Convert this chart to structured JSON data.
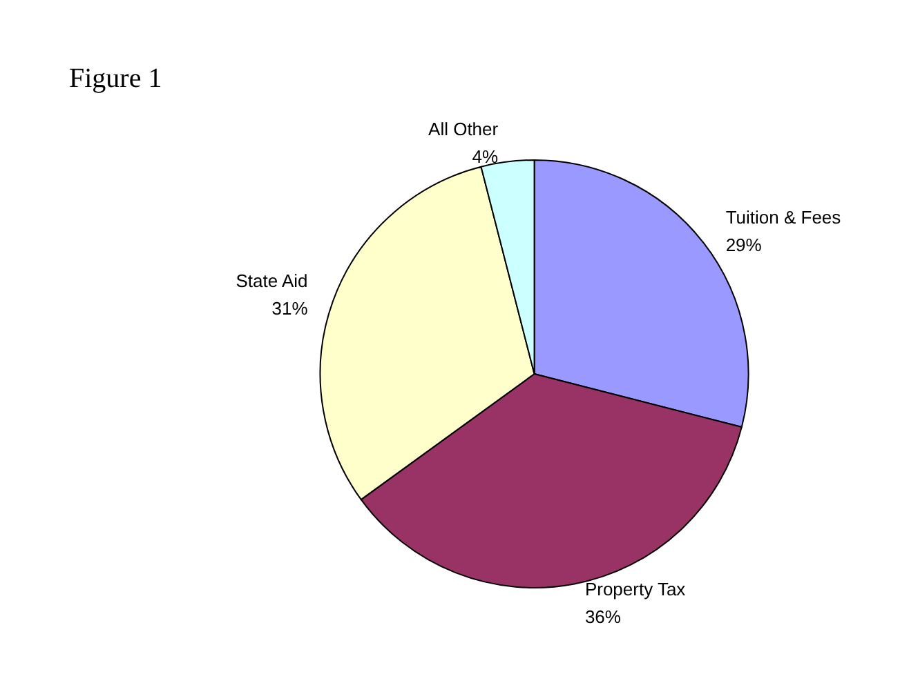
{
  "chart_data": {
    "type": "pie",
    "title": "Figure 1",
    "categories": [
      "Tuition & Fees",
      "Property Tax",
      "State Aid",
      "All Other"
    ],
    "values": [
      29,
      36,
      31,
      4
    ],
    "value_labels": [
      "29%",
      "36%",
      "31%",
      "4%"
    ],
    "colors": [
      "#9999ff",
      "#993366",
      "#ffffcc",
      "#ccffff"
    ],
    "legend": false
  }
}
